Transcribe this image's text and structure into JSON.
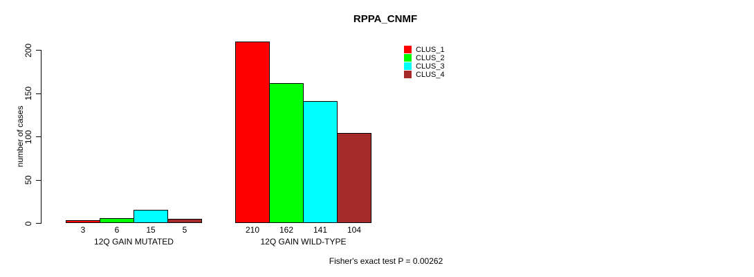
{
  "chart_data": {
    "type": "bar",
    "title": "RPPA_CNMF",
    "ylabel": "number of cases",
    "xlabel": "",
    "ylim": [
      0,
      210
    ],
    "yticks": [
      0,
      50,
      100,
      150,
      200
    ],
    "categories": [
      "12Q GAIN MUTATED",
      "12Q GAIN WILD-TYPE"
    ],
    "series": [
      {
        "name": "CLUS_1",
        "color": "#ff0000",
        "values": [
          3,
          210
        ]
      },
      {
        "name": "CLUS_2",
        "color": "#00ff00",
        "values": [
          6,
          162
        ]
      },
      {
        "name": "CLUS_3",
        "color": "#00ffff",
        "values": [
          15,
          141
        ]
      },
      {
        "name": "CLUS_4",
        "color": "#a52a2a",
        "values": [
          5,
          104
        ]
      }
    ],
    "bar_value_labels": [
      [
        3,
        6,
        15,
        5
      ],
      [
        210,
        162,
        141,
        104
      ]
    ],
    "bar_border_color": "#000000",
    "text_color": "#000000",
    "background_color": "#ffffff",
    "legend_position": "top-right",
    "grid": false,
    "annotation": "Fisher's exact test P = 0.00262"
  }
}
